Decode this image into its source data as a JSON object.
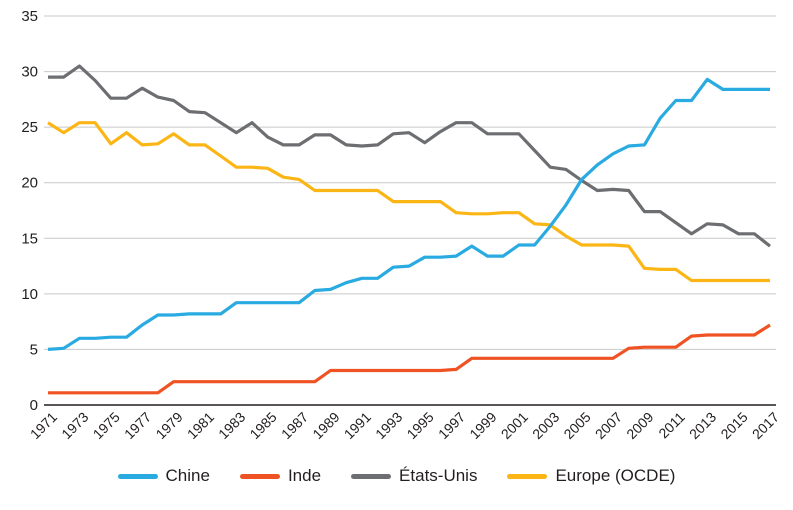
{
  "colors": {
    "background": "#FFFFFF",
    "grid": "#C8C9CA",
    "axis": "#231F20",
    "text": "#231F20"
  },
  "chart_data": {
    "type": "line",
    "title": "",
    "xlabel": "",
    "ylabel": "",
    "ylim": [
      0,
      35
    ],
    "y_ticks": [
      0,
      5,
      10,
      15,
      20,
      25,
      30,
      35
    ],
    "grid": true,
    "legend_position": "bottom",
    "x": [
      1971,
      1972,
      1973,
      1974,
      1975,
      1976,
      1977,
      1978,
      1979,
      1980,
      1981,
      1982,
      1983,
      1984,
      1985,
      1986,
      1987,
      1988,
      1989,
      1990,
      1991,
      1992,
      1993,
      1994,
      1995,
      1996,
      1997,
      1998,
      1999,
      2000,
      2001,
      2002,
      2003,
      2004,
      2005,
      2006,
      2007,
      2008,
      2009,
      2010,
      2011,
      2012,
      2013,
      2014,
      2015,
      2016,
      2017
    ],
    "x_tick_labels": [
      "1971",
      "1973",
      "1975",
      "1977",
      "1979",
      "1981",
      "1983",
      "1985",
      "1987",
      "1989",
      "1991",
      "1993",
      "1995",
      "1997",
      "1999",
      "2001",
      "2003",
      "2005",
      "2007",
      "2009",
      "2011",
      "2013",
      "2015",
      "2017"
    ],
    "series": [
      {
        "id": "chine",
        "name": "Chine",
        "color": "#29ABE2",
        "values": [
          5.0,
          5.1,
          6.0,
          6.0,
          6.1,
          6.1,
          7.2,
          8.1,
          8.1,
          8.2,
          8.2,
          8.2,
          9.2,
          9.2,
          9.2,
          9.2,
          9.2,
          10.3,
          10.4,
          11.0,
          11.4,
          11.4,
          12.4,
          12.5,
          13.3,
          13.3,
          13.4,
          14.3,
          13.4,
          13.4,
          14.4,
          14.4,
          16.1,
          18.0,
          20.3,
          21.6,
          22.6,
          23.3,
          23.4,
          25.8,
          27.4,
          27.4,
          29.3,
          28.4,
          28.4,
          28.4,
          28.4
        ]
      },
      {
        "id": "inde",
        "name": "Inde",
        "color": "#F05323",
        "values": [
          1.1,
          1.1,
          1.1,
          1.1,
          1.1,
          1.1,
          1.1,
          1.1,
          2.1,
          2.1,
          2.1,
          2.1,
          2.1,
          2.1,
          2.1,
          2.1,
          2.1,
          2.1,
          3.1,
          3.1,
          3.1,
          3.1,
          3.1,
          3.1,
          3.1,
          3.1,
          3.2,
          4.2,
          4.2,
          4.2,
          4.2,
          4.2,
          4.2,
          4.2,
          4.2,
          4.2,
          4.2,
          5.1,
          5.2,
          5.2,
          5.2,
          6.2,
          6.3,
          6.3,
          6.3,
          6.3,
          7.2
        ]
      },
      {
        "id": "etats-unis",
        "name": "États-Unis",
        "color": "#6D6E71",
        "values": [
          29.5,
          29.5,
          30.5,
          29.2,
          27.6,
          27.6,
          28.5,
          27.7,
          27.4,
          26.4,
          26.3,
          25.4,
          24.5,
          25.4,
          24.1,
          23.4,
          23.4,
          24.3,
          24.3,
          23.4,
          23.3,
          23.4,
          24.4,
          24.5,
          23.6,
          24.6,
          25.4,
          25.4,
          24.4,
          24.4,
          24.4,
          22.9,
          21.4,
          21.2,
          20.2,
          19.3,
          19.4,
          19.3,
          17.4,
          17.4,
          16.4,
          15.4,
          16.3,
          16.2,
          15.4,
          15.4,
          14.3
        ]
      },
      {
        "id": "europe-ocde",
        "name": "Europe (OCDE)",
        "color": "#FBB615",
        "values": [
          25.4,
          24.5,
          25.4,
          25.4,
          23.5,
          24.5,
          23.4,
          23.5,
          24.4,
          23.4,
          23.4,
          22.4,
          21.4,
          21.4,
          21.3,
          20.5,
          20.3,
          19.3,
          19.3,
          19.3,
          19.3,
          19.3,
          18.3,
          18.3,
          18.3,
          18.3,
          17.3,
          17.2,
          17.2,
          17.3,
          17.3,
          16.3,
          16.2,
          15.2,
          14.4,
          14.4,
          14.4,
          14.3,
          12.3,
          12.2,
          12.2,
          11.2,
          11.2,
          11.2,
          11.2,
          11.2,
          11.2
        ]
      }
    ]
  }
}
